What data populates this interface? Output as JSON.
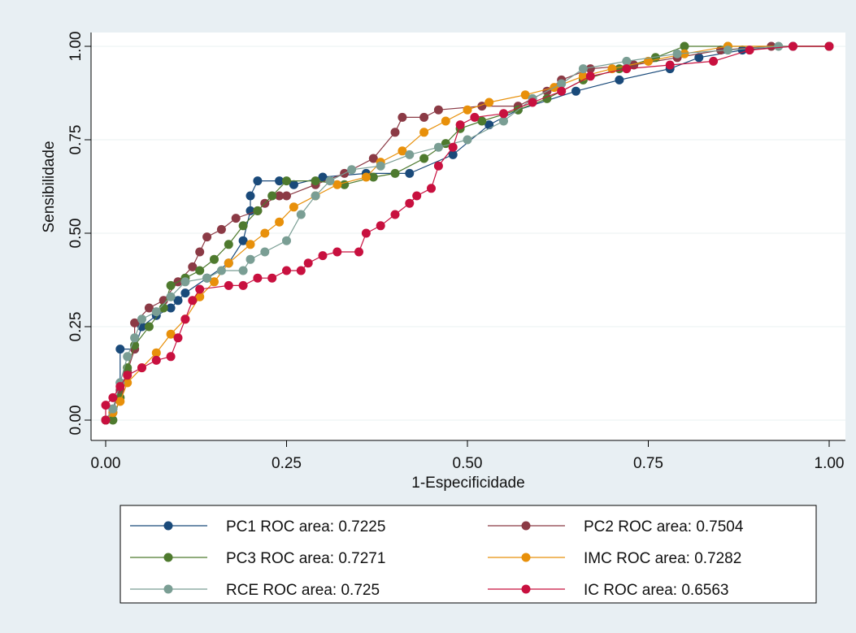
{
  "chart_data": {
    "type": "line",
    "title": "",
    "xlabel": "1-Especificidade",
    "ylabel": "Sensibilidade",
    "xlim": [
      0,
      1
    ],
    "ylim": [
      0,
      1
    ],
    "x_ticks": [
      "0.00",
      "0.25",
      "0.50",
      "0.75",
      "1.00"
    ],
    "y_ticks": [
      "0.00",
      "0.25",
      "0.50",
      "0.75",
      "1.00"
    ],
    "grid": true,
    "legend_position": "bottom",
    "series": [
      {
        "name": "PC1 ROC area: 0.7225",
        "color": "#1a4a7a",
        "points": [
          [
            0,
            0
          ],
          [
            0.01,
            0.02
          ],
          [
            0.02,
            0.1
          ],
          [
            0.02,
            0.19
          ],
          [
            0.04,
            0.19
          ],
          [
            0.05,
            0.25
          ],
          [
            0.07,
            0.28
          ],
          [
            0.09,
            0.3
          ],
          [
            0.1,
            0.32
          ],
          [
            0.11,
            0.34
          ],
          [
            0.14,
            0.38
          ],
          [
            0.17,
            0.42
          ],
          [
            0.19,
            0.48
          ],
          [
            0.2,
            0.56
          ],
          [
            0.2,
            0.6
          ],
          [
            0.21,
            0.64
          ],
          [
            0.24,
            0.64
          ],
          [
            0.26,
            0.63
          ],
          [
            0.3,
            0.65
          ],
          [
            0.36,
            0.66
          ],
          [
            0.42,
            0.66
          ],
          [
            0.48,
            0.71
          ],
          [
            0.53,
            0.79
          ],
          [
            0.57,
            0.83
          ],
          [
            0.65,
            0.88
          ],
          [
            0.71,
            0.91
          ],
          [
            0.78,
            0.94
          ],
          [
            0.82,
            0.97
          ],
          [
            0.88,
            0.99
          ],
          [
            0.95,
            1.0
          ],
          [
            1.0,
            1.0
          ]
        ]
      },
      {
        "name": "PC2 ROC area: 0.7504",
        "color": "#8b3a45",
        "points": [
          [
            0,
            0
          ],
          [
            0.01,
            0.03
          ],
          [
            0.02,
            0.08
          ],
          [
            0.03,
            0.13
          ],
          [
            0.04,
            0.19
          ],
          [
            0.04,
            0.26
          ],
          [
            0.06,
            0.3
          ],
          [
            0.08,
            0.32
          ],
          [
            0.1,
            0.37
          ],
          [
            0.12,
            0.41
          ],
          [
            0.13,
            0.45
          ],
          [
            0.14,
            0.49
          ],
          [
            0.16,
            0.51
          ],
          [
            0.18,
            0.54
          ],
          [
            0.21,
            0.56
          ],
          [
            0.22,
            0.58
          ],
          [
            0.24,
            0.6
          ],
          [
            0.25,
            0.6
          ],
          [
            0.29,
            0.63
          ],
          [
            0.33,
            0.66
          ],
          [
            0.37,
            0.7
          ],
          [
            0.4,
            0.77
          ],
          [
            0.41,
            0.81
          ],
          [
            0.44,
            0.81
          ],
          [
            0.46,
            0.83
          ],
          [
            0.52,
            0.84
          ],
          [
            0.57,
            0.84
          ],
          [
            0.61,
            0.88
          ],
          [
            0.63,
            0.91
          ],
          [
            0.67,
            0.94
          ],
          [
            0.73,
            0.95
          ],
          [
            0.79,
            0.97
          ],
          [
            0.85,
            0.99
          ],
          [
            0.92,
            1.0
          ],
          [
            1.0,
            1.0
          ]
        ]
      },
      {
        "name": "PC3 ROC area: 0.7271",
        "color": "#4e7a2e",
        "points": [
          [
            0,
            0
          ],
          [
            0.01,
            0.0
          ],
          [
            0.02,
            0.06
          ],
          [
            0.03,
            0.14
          ],
          [
            0.04,
            0.2
          ],
          [
            0.06,
            0.25
          ],
          [
            0.08,
            0.3
          ],
          [
            0.09,
            0.36
          ],
          [
            0.11,
            0.38
          ],
          [
            0.13,
            0.4
          ],
          [
            0.15,
            0.43
          ],
          [
            0.17,
            0.47
          ],
          [
            0.19,
            0.52
          ],
          [
            0.21,
            0.56
          ],
          [
            0.23,
            0.6
          ],
          [
            0.25,
            0.64
          ],
          [
            0.29,
            0.64
          ],
          [
            0.33,
            0.63
          ],
          [
            0.37,
            0.65
          ],
          [
            0.4,
            0.66
          ],
          [
            0.44,
            0.7
          ],
          [
            0.47,
            0.74
          ],
          [
            0.49,
            0.78
          ],
          [
            0.52,
            0.8
          ],
          [
            0.57,
            0.83
          ],
          [
            0.61,
            0.86
          ],
          [
            0.66,
            0.91
          ],
          [
            0.71,
            0.94
          ],
          [
            0.76,
            0.97
          ],
          [
            0.8,
            1.0
          ],
          [
            0.86,
            1.0
          ],
          [
            1.0,
            1.0
          ]
        ]
      },
      {
        "name": "IMC ROC area: 0.7282",
        "color": "#e8900a",
        "points": [
          [
            0,
            0
          ],
          [
            0.01,
            0.02
          ],
          [
            0.02,
            0.05
          ],
          [
            0.03,
            0.1
          ],
          [
            0.05,
            0.14
          ],
          [
            0.07,
            0.18
          ],
          [
            0.09,
            0.23
          ],
          [
            0.11,
            0.27
          ],
          [
            0.13,
            0.33
          ],
          [
            0.15,
            0.37
          ],
          [
            0.17,
            0.42
          ],
          [
            0.2,
            0.47
          ],
          [
            0.22,
            0.5
          ],
          [
            0.24,
            0.53
          ],
          [
            0.26,
            0.57
          ],
          [
            0.29,
            0.6
          ],
          [
            0.32,
            0.63
          ],
          [
            0.36,
            0.65
          ],
          [
            0.38,
            0.69
          ],
          [
            0.41,
            0.72
          ],
          [
            0.44,
            0.77
          ],
          [
            0.47,
            0.8
          ],
          [
            0.5,
            0.83
          ],
          [
            0.53,
            0.85
          ],
          [
            0.58,
            0.87
          ],
          [
            0.62,
            0.89
          ],
          [
            0.66,
            0.92
          ],
          [
            0.7,
            0.94
          ],
          [
            0.75,
            0.96
          ],
          [
            0.8,
            0.98
          ],
          [
            0.86,
            1.0
          ],
          [
            1.0,
            1.0
          ]
        ]
      },
      {
        "name": "RCE ROC area: 0.725",
        "color": "#7a9e94",
        "points": [
          [
            0,
            0
          ],
          [
            0.01,
            0.03
          ],
          [
            0.02,
            0.1
          ],
          [
            0.03,
            0.17
          ],
          [
            0.04,
            0.22
          ],
          [
            0.05,
            0.27
          ],
          [
            0.07,
            0.29
          ],
          [
            0.09,
            0.33
          ],
          [
            0.11,
            0.37
          ],
          [
            0.14,
            0.38
          ],
          [
            0.16,
            0.4
          ],
          [
            0.19,
            0.4
          ],
          [
            0.2,
            0.43
          ],
          [
            0.22,
            0.45
          ],
          [
            0.25,
            0.48
          ],
          [
            0.27,
            0.55
          ],
          [
            0.29,
            0.6
          ],
          [
            0.31,
            0.64
          ],
          [
            0.34,
            0.67
          ],
          [
            0.38,
            0.68
          ],
          [
            0.42,
            0.71
          ],
          [
            0.46,
            0.73
          ],
          [
            0.5,
            0.75
          ],
          [
            0.55,
            0.8
          ],
          [
            0.59,
            0.86
          ],
          [
            0.63,
            0.9
          ],
          [
            0.66,
            0.94
          ],
          [
            0.72,
            0.96
          ],
          [
            0.79,
            0.98
          ],
          [
            0.86,
            0.99
          ],
          [
            0.93,
            1.0
          ],
          [
            1.0,
            1.0
          ]
        ]
      },
      {
        "name": "IC ROC area: 0.6563",
        "color": "#c8103f",
        "points": [
          [
            0,
            0
          ],
          [
            0.0,
            0.04
          ],
          [
            0.01,
            0.06
          ],
          [
            0.02,
            0.09
          ],
          [
            0.03,
            0.12
          ],
          [
            0.05,
            0.14
          ],
          [
            0.07,
            0.16
          ],
          [
            0.09,
            0.17
          ],
          [
            0.1,
            0.22
          ],
          [
            0.11,
            0.27
          ],
          [
            0.12,
            0.32
          ],
          [
            0.13,
            0.35
          ],
          [
            0.17,
            0.36
          ],
          [
            0.19,
            0.36
          ],
          [
            0.21,
            0.38
          ],
          [
            0.23,
            0.38
          ],
          [
            0.25,
            0.4
          ],
          [
            0.27,
            0.4
          ],
          [
            0.28,
            0.42
          ],
          [
            0.3,
            0.44
          ],
          [
            0.32,
            0.45
          ],
          [
            0.35,
            0.45
          ],
          [
            0.36,
            0.5
          ],
          [
            0.38,
            0.52
          ],
          [
            0.4,
            0.55
          ],
          [
            0.42,
            0.58
          ],
          [
            0.43,
            0.6
          ],
          [
            0.45,
            0.62
          ],
          [
            0.46,
            0.68
          ],
          [
            0.48,
            0.73
          ],
          [
            0.49,
            0.79
          ],
          [
            0.51,
            0.81
          ],
          [
            0.55,
            0.82
          ],
          [
            0.59,
            0.85
          ],
          [
            0.63,
            0.88
          ],
          [
            0.67,
            0.92
          ],
          [
            0.72,
            0.94
          ],
          [
            0.78,
            0.95
          ],
          [
            0.84,
            0.96
          ],
          [
            0.89,
            0.99
          ],
          [
            0.95,
            1.0
          ],
          [
            1.0,
            1.0
          ]
        ]
      }
    ]
  }
}
